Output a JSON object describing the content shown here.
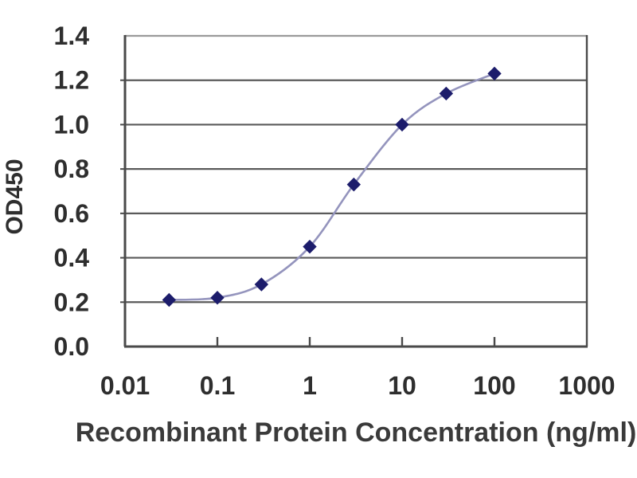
{
  "chart_data": {
    "type": "line",
    "title": "",
    "xlabel": "Recombinant Protein Concentration (ng/ml)",
    "ylabel": "OD450",
    "x_scale": "log",
    "xlim": [
      0.01,
      1000
    ],
    "ylim": [
      0,
      1.4
    ],
    "x_tick_labels": [
      "0.01",
      "0.1",
      "1",
      "10",
      "100",
      "1000"
    ],
    "x_tick_values": [
      0.01,
      0.1,
      1,
      10,
      100,
      1000
    ],
    "y_tick_labels": [
      "0.0",
      "0.2",
      "0.4",
      "0.6",
      "0.8",
      "1.0",
      "1.2",
      "1.4"
    ],
    "y_tick_values": [
      0,
      0.2,
      0.4,
      0.6,
      0.8,
      1.0,
      1.2,
      1.4
    ],
    "grid": "horizontal",
    "legend_position": "none",
    "series": [
      {
        "name": "OD450",
        "marker": "diamond",
        "x": [
          0.03,
          0.1,
          0.3,
          1,
          3,
          10,
          30,
          100
        ],
        "y": [
          0.21,
          0.22,
          0.28,
          0.45,
          0.73,
          1.0,
          1.14,
          1.23
        ]
      }
    ],
    "colors": {
      "line": "#9494bd",
      "marker": "#1c1c6b",
      "axis": "#4a4a4a",
      "grid": "#5a5a5a",
      "top_grid": "#9a9a9a",
      "text": "#2e2e2e",
      "background": "#ffffff"
    }
  }
}
